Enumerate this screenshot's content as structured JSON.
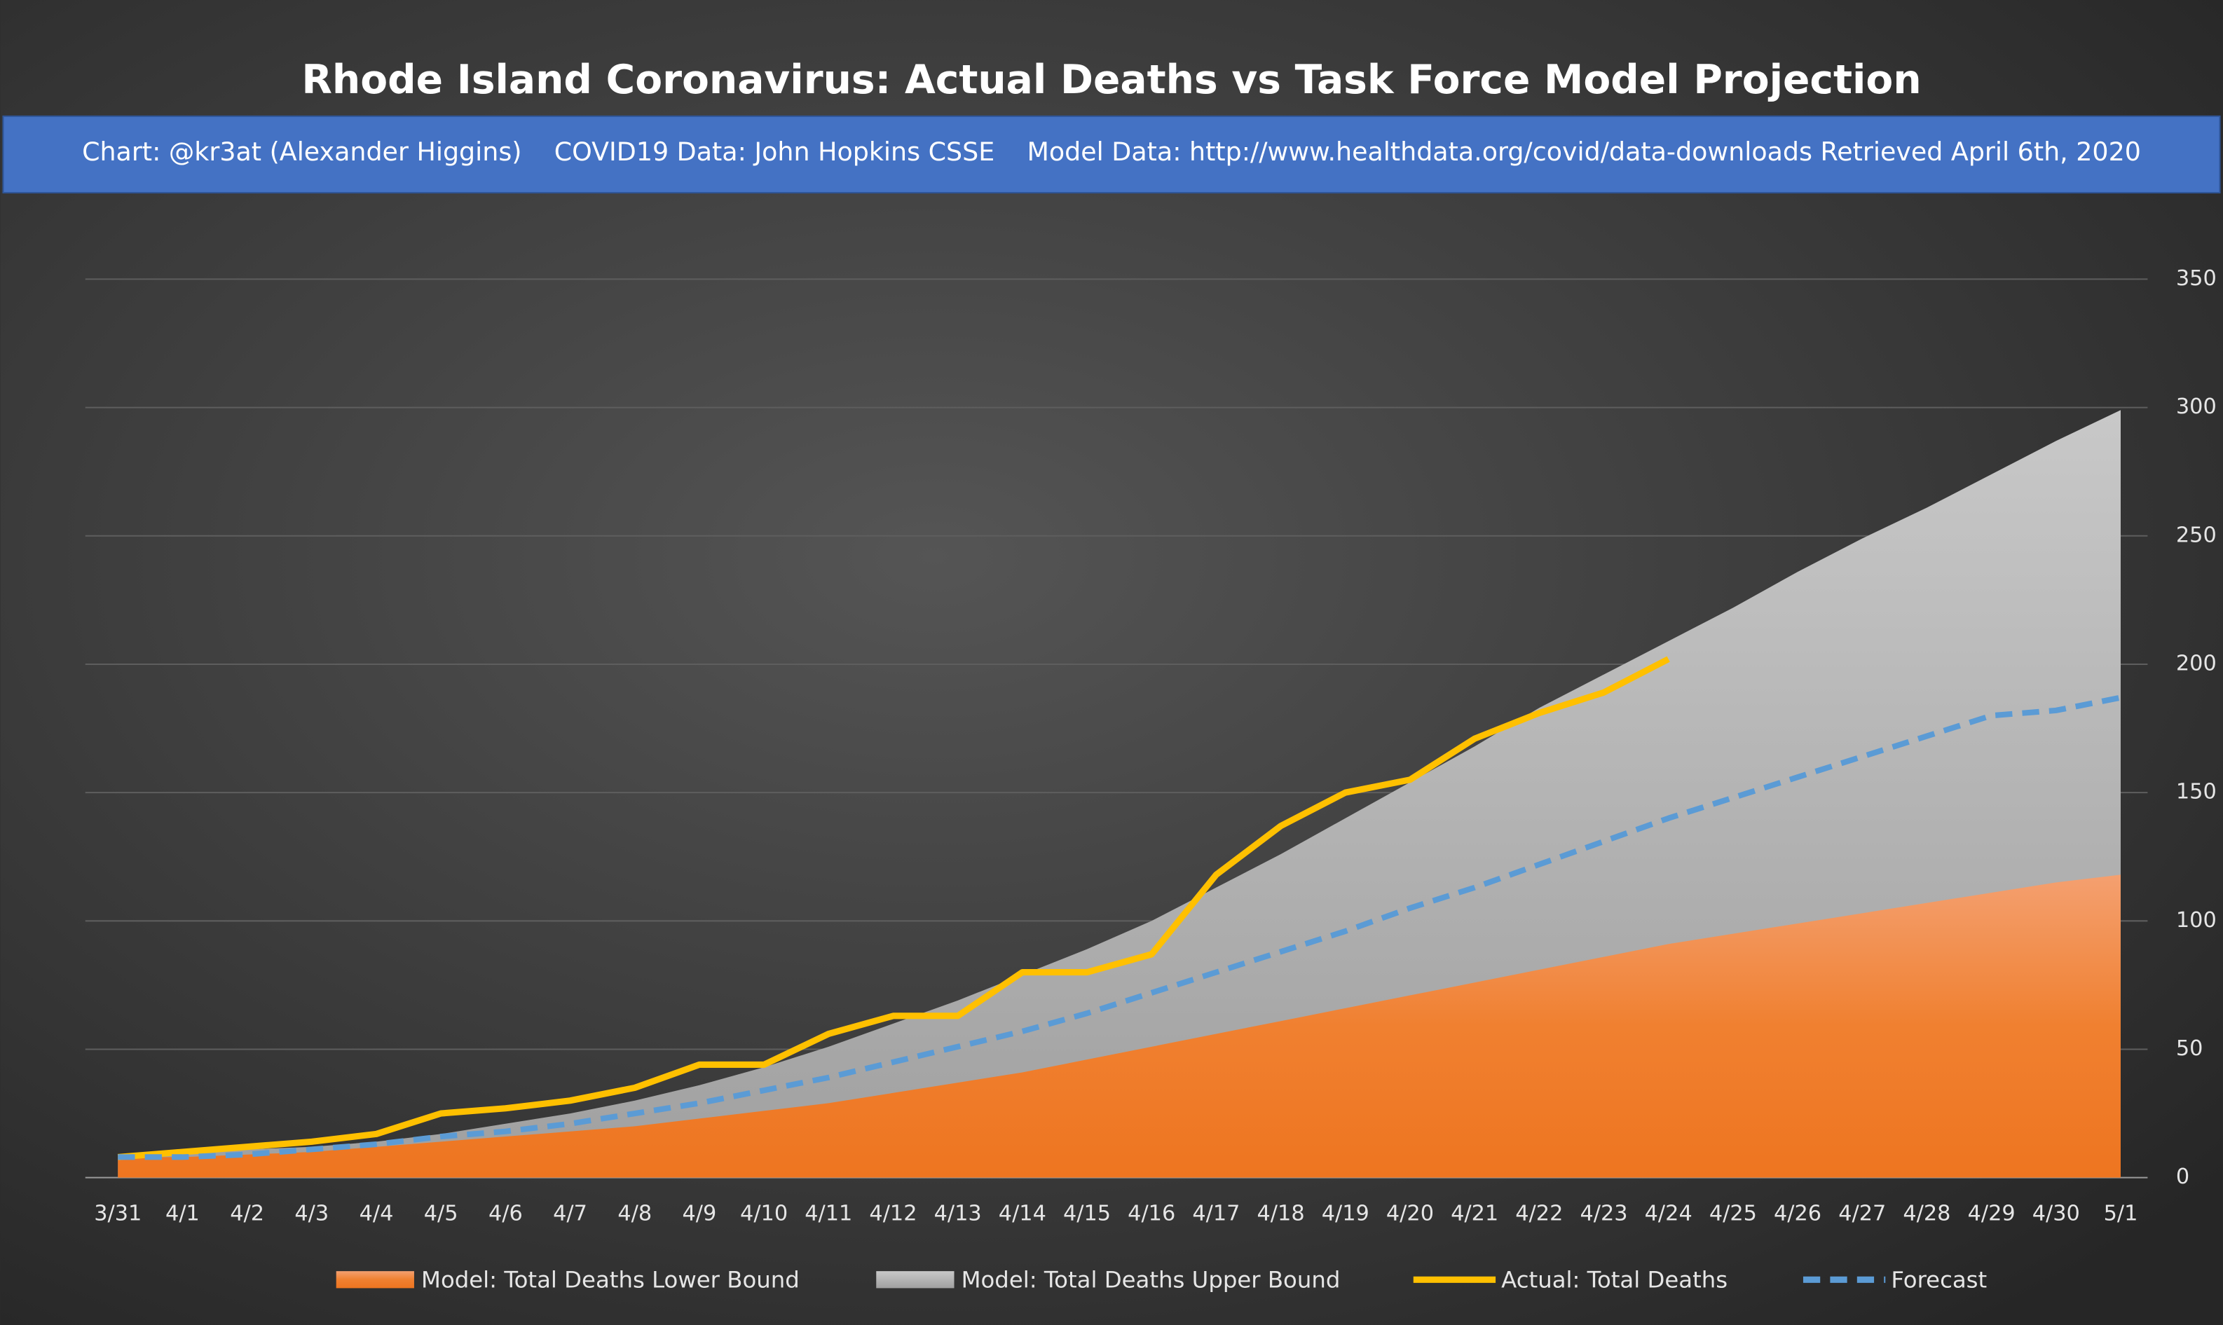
{
  "chart_data": {
    "type": "line",
    "title": "Rhode Island Coronavirus: Actual Deaths vs Task Force Model Projection",
    "subtitle": "Chart: @kr3at (Alexander Higgins)    COVID19 Data: John Hopkins CSSE    Model Data: http://www.healthdata.org/covid/data-downloads Retrieved April 6th, 2020",
    "categories": [
      "3/31",
      "4/1",
      "4/2",
      "4/3",
      "4/4",
      "4/5",
      "4/6",
      "4/7",
      "4/8",
      "4/9",
      "4/10",
      "4/11",
      "4/12",
      "4/13",
      "4/14",
      "4/15",
      "4/16",
      "4/17",
      "4/18",
      "4/19",
      "4/20",
      "4/21",
      "4/22",
      "4/23",
      "4/24",
      "4/25",
      "4/26",
      "4/27",
      "4/28",
      "4/29",
      "4/30",
      "5/1"
    ],
    "series": [
      {
        "name": "Model: Total Deaths Upper Bound",
        "color": "#a5a5a5",
        "style": "area",
        "values": [
          8,
          9,
          11,
          12,
          14,
          17,
          21,
          25,
          30,
          36,
          43,
          51,
          60,
          69,
          79,
          89,
          100,
          113,
          126,
          140,
          154,
          168,
          183,
          196,
          209,
          222,
          236,
          249,
          261,
          274,
          287,
          299
        ]
      },
      {
        "name": "Model: Total Deaths Lower Bound",
        "color": "#ed7d31",
        "style": "area",
        "values": [
          8,
          8,
          9,
          10,
          12,
          14,
          16,
          18,
          20,
          23,
          26,
          29,
          33,
          37,
          41,
          46,
          51,
          56,
          61,
          66,
          71,
          76,
          81,
          86,
          91,
          95,
          99,
          103,
          107,
          111,
          115,
          118
        ]
      },
      {
        "name": "Actual: Total Deaths",
        "color": "#ffc000",
        "style": "solid",
        "values": [
          8,
          10,
          12,
          14,
          17,
          25,
          27,
          30,
          35,
          44,
          44,
          56,
          63,
          63,
          80,
          80,
          87,
          118,
          137,
          150,
          155,
          171,
          181,
          189,
          202,
          null,
          null,
          null,
          null,
          null,
          null,
          null
        ]
      },
      {
        "name": "Forecast",
        "color": "#5b9bd5",
        "style": "dashed",
        "values": [
          8,
          8,
          9,
          11,
          13,
          16,
          18,
          21,
          25,
          29,
          34,
          39,
          45,
          51,
          57,
          64,
          72,
          80,
          88,
          96,
          105,
          113,
          122,
          131,
          140,
          148,
          156,
          164,
          172,
          180,
          182,
          187
        ]
      }
    ],
    "legend_order": [
      1,
      0,
      2,
      3
    ],
    "legend": "bottom",
    "ylim": [
      0,
      350
    ],
    "yticks": [
      0,
      50,
      100,
      150,
      200,
      250,
      300,
      350
    ],
    "grid": true
  }
}
